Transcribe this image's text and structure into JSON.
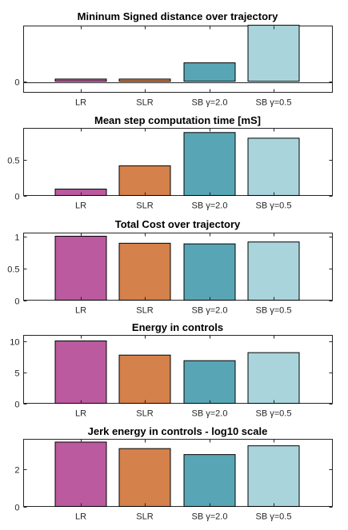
{
  "colors": {
    "LR": "#bb5a9e",
    "SLR": "#d5814b",
    "SB_g2": "#58a6b5",
    "SB_g05": "#a9d4db"
  },
  "chart_data": [
    {
      "type": "bar",
      "title": "Mininum Signed distance over trajectory",
      "categories": [
        "LR",
        "SLR",
        "SB γ=2.0",
        "SB γ=0.5"
      ],
      "values": [
        0.03,
        0.03,
        0.25,
        0.76
      ],
      "ylim": [
        -0.15,
        0.75
      ],
      "yticks": [
        0
      ],
      "zero_line": true,
      "xlabel": "",
      "ylabel": ""
    },
    {
      "type": "bar",
      "title": "Mean step computation time [mS]",
      "categories": [
        "LR",
        "SLR",
        "SB γ=2.0",
        "SB γ=0.5"
      ],
      "values": [
        0.09,
        0.42,
        0.89,
        0.81
      ],
      "ylim": [
        0,
        0.95
      ],
      "yticks": [
        0,
        0.5
      ],
      "xlabel": "",
      "ylabel": ""
    },
    {
      "type": "bar",
      "title": "Total Cost over trajectory",
      "categories": [
        "LR",
        "SLR",
        "SB γ=2.0",
        "SB γ=0.5"
      ],
      "values": [
        1.0,
        0.89,
        0.88,
        0.91
      ],
      "ylim": [
        0,
        1.05
      ],
      "yticks": [
        0,
        0.5,
        1
      ],
      "xlabel": "",
      "ylabel": ""
    },
    {
      "type": "bar",
      "title": "Energy in controls",
      "categories": [
        "LR",
        "SLR",
        "SB γ=2.0",
        "SB γ=0.5"
      ],
      "values": [
        10.1,
        7.8,
        6.9,
        8.2
      ],
      "ylim": [
        0,
        11
      ],
      "yticks": [
        0,
        5,
        10
      ],
      "xlabel": "",
      "ylabel": ""
    },
    {
      "type": "bar",
      "title": "Jerk energy in controls - log10 scale",
      "categories": [
        "LR",
        "SLR",
        "SB γ=2.0",
        "SB γ=0.5"
      ],
      "values": [
        3.45,
        3.1,
        2.78,
        3.25
      ],
      "ylim": [
        0,
        3.6
      ],
      "yticks": [
        0,
        2
      ],
      "xlabel": "",
      "ylabel": ""
    }
  ]
}
